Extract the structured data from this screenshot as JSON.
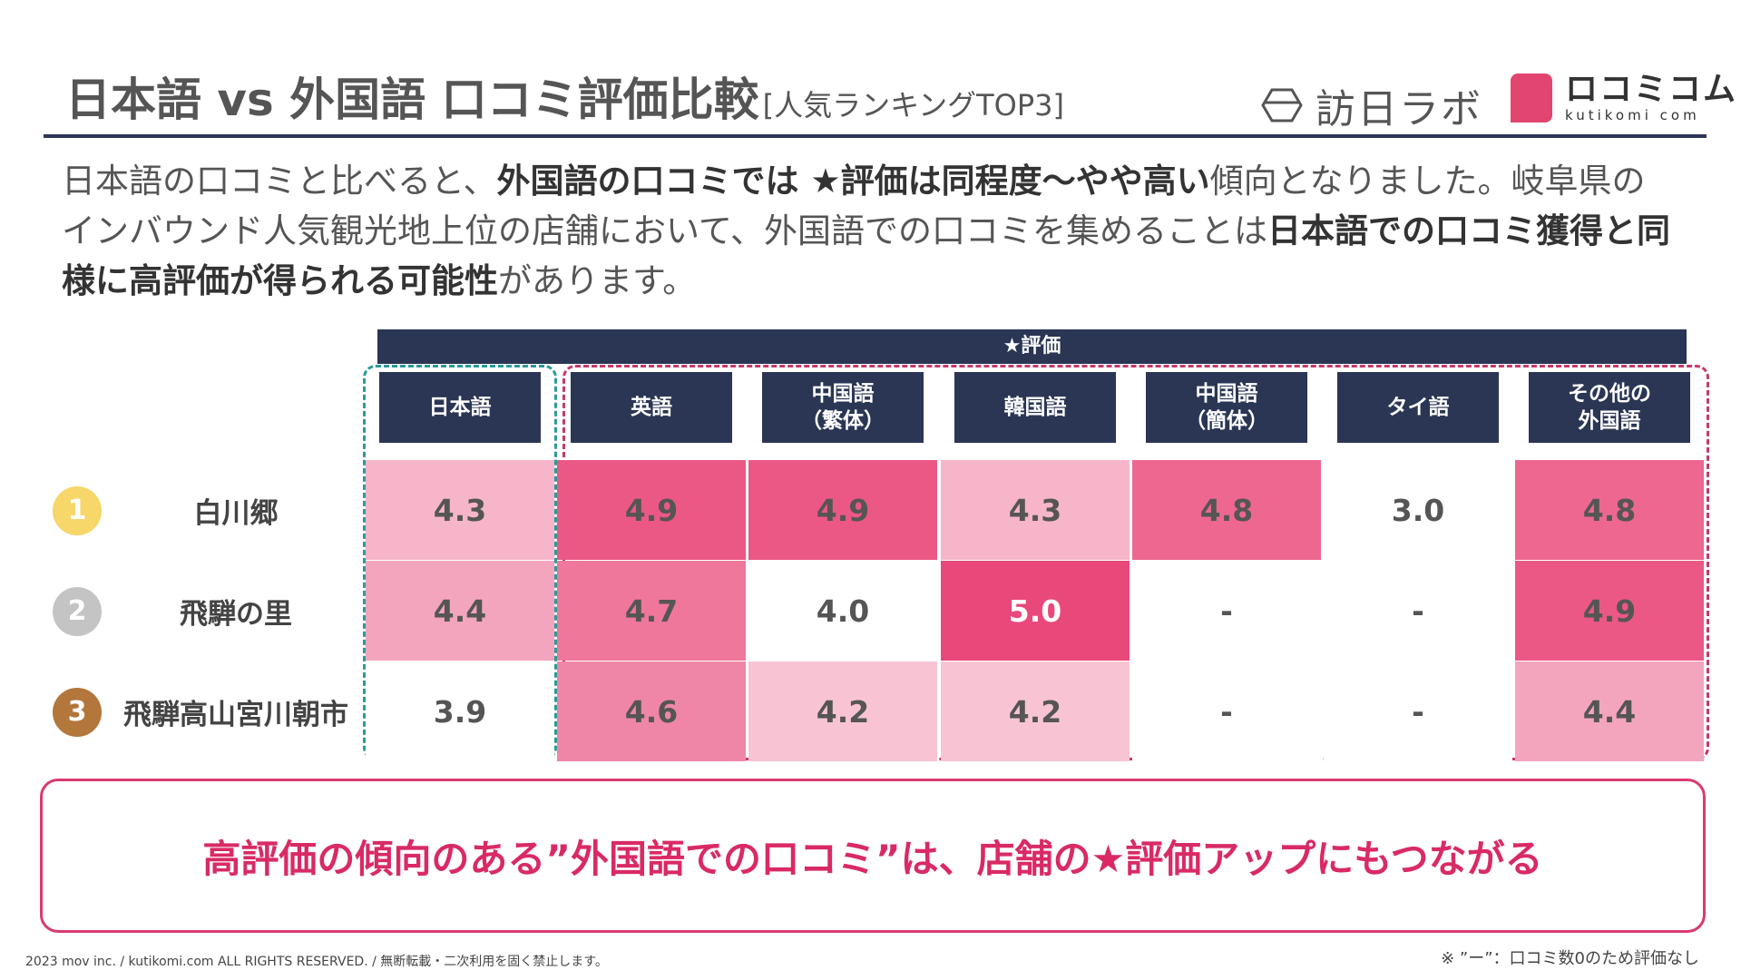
{
  "header": {
    "title": "日本語 vs 外国語 口コミ評価比較",
    "subtitle": "[人気ランキングTOP3]"
  },
  "logos": {
    "labo_name": "訪日ラボ",
    "kutikomi_name": "ロコミコム",
    "kutikomi_sub": "kutikomi com"
  },
  "description": {
    "p1": "日本語の口コミと比べると、",
    "b1": "外国語の口コミでは ★評価は同程度〜やや高い",
    "p2": "傾向となりました。岐阜県のインバウンド人気観光地上位の店舗において、外国語での口コミを集めることは",
    "b2": "日本語での口コミ獲得と同様に高評価が得られる可能性",
    "p3": "があります。"
  },
  "chart_data": {
    "type": "table",
    "title": "★評価",
    "columns": [
      "日本語",
      "英語",
      "中国語\n（繁体）",
      "韓国語",
      "中国語\n（簡体）",
      "タイ語",
      "その他の\n外国語"
    ],
    "rows": [
      {
        "rank": "1",
        "name": "白川郷",
        "values": [
          "4.3",
          "4.9",
          "4.9",
          "4.3",
          "4.8",
          "3.0",
          "4.8"
        ]
      },
      {
        "rank": "2",
        "name": "飛騨の里",
        "values": [
          "4.4",
          "4.7",
          "4.0",
          "5.0",
          "-",
          "-",
          "4.9"
        ]
      },
      {
        "rank": "3",
        "name": "飛騨高山宮川朝市",
        "values": [
          "3.9",
          "4.6",
          "4.2",
          "4.2",
          "-",
          "-",
          "4.4"
        ]
      }
    ],
    "colors": {
      "rank1": "#f7d66a",
      "rank2": "#c4c4c4",
      "rank3": "#b3763b",
      "heat_max": "#e9487a",
      "header_bg": "#2a3654"
    }
  },
  "conclusion": "高評価の傾向のある”外国語での口コミ”は、店舗の★評価アップにもつながる",
  "footer": "2023 mov inc. / kutikomi.com ALL RIGHTS RESERVED. / 無断転載・二次利用を固く禁止します。",
  "note": "※ ”ー”：口コミ数0のため評価なし"
}
